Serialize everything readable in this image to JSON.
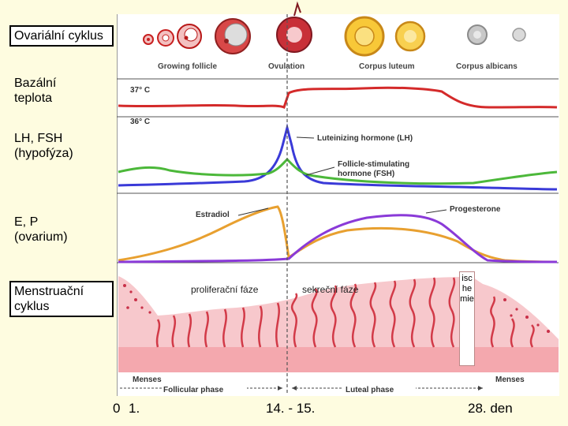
{
  "rows": {
    "ovarian": "Ovariální cyklus",
    "basal": "Bazální teplota",
    "lhfsh": "LH, FSH (hypofýza)",
    "ep": "E, P (ovarium)",
    "menstrual": "Menstruační cyklus"
  },
  "stages": {
    "growing": "Growing follicle",
    "ovulation": "Ovulation",
    "luteum": "Corpus luteum",
    "albicans": "Corpus albicans"
  },
  "temps": {
    "high": "37° C",
    "low": "36° C"
  },
  "hormones": {
    "lh": "Luteinizing hormone (LH)",
    "fsh_1": "Follicle-stimulating",
    "fsh_2": "hormone (FSH)",
    "estradiol": "Estradiol",
    "progesterone": "Progesterone"
  },
  "phases": {
    "proliferative": "proliferační  fáze",
    "secretory": "sekreční fáze",
    "ischemia": "ischemie",
    "menses_left": "Menses",
    "menses_right": "Menses",
    "follicular": "Follicular phase",
    "luteal": "Luteal phase"
  },
  "days": {
    "zero": "0",
    "one": "1.",
    "mid": "14. - 15.",
    "end": "28. den"
  },
  "colors": {
    "temperature": "#d42a2a",
    "lh": "#3a3ad8",
    "fsh": "#4cb83a",
    "estradiol": "#e8a030",
    "progesterone": "#8a3ad8",
    "endometrium": "#f4a8ae"
  }
}
